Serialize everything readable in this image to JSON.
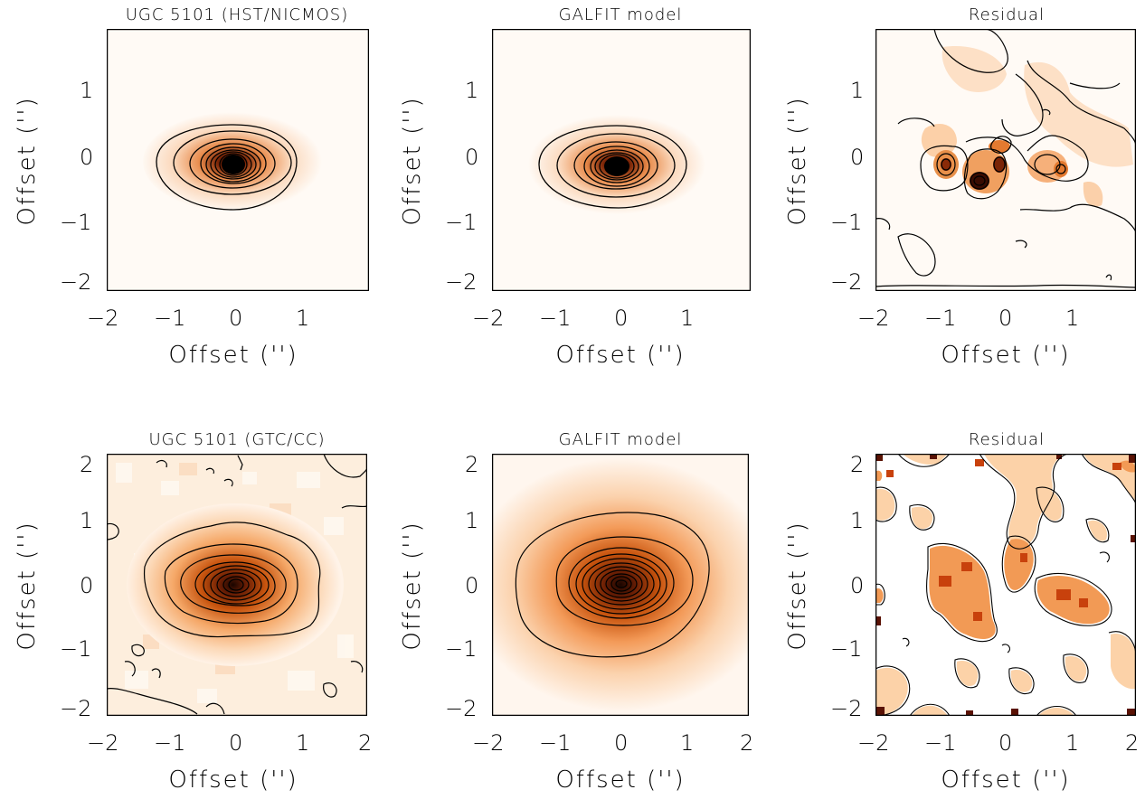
{
  "panels": [
    {
      "title": "UGC 5101 (HST/NICMOS)",
      "xlabel": "Offset ('')",
      "ylabel": "Offset ('')",
      "xticks": [
        "−2",
        "−1",
        "0",
        "1"
      ],
      "yticks": [
        "1",
        "0",
        "−1",
        "−2"
      ]
    },
    {
      "title": "GALFIT model",
      "xlabel": "Offset ('')",
      "ylabel": "Offset ('')",
      "xticks": [
        "−2",
        "−1",
        "0",
        "1"
      ],
      "yticks": [
        "1",
        "0",
        "−1",
        "−2"
      ]
    },
    {
      "title": "Residual",
      "xlabel": "Offset ('')",
      "ylabel": "Offset ('')",
      "xticks": [
        "−2",
        "−1",
        "0",
        "1"
      ],
      "yticks": [
        "1",
        "0",
        "−1",
        "−2"
      ]
    },
    {
      "title": "UGC 5101 (GTC/CC)",
      "xlabel": "Offset ('')",
      "ylabel": "Offset ('')",
      "xticks": [
        "−2",
        "−1",
        "0",
        "1",
        "2"
      ],
      "yticks": [
        "2",
        "1",
        "0",
        "−1",
        "−2"
      ]
    },
    {
      "title": "GALFIT model",
      "xlabel": "Offset ('')",
      "ylabel": "Offset ('')",
      "xticks": [
        "−2",
        "−1",
        "0",
        "1",
        "2"
      ],
      "yticks": [
        "2",
        "1",
        "0",
        "−1",
        "−2"
      ]
    },
    {
      "title": "Residual",
      "xlabel": "Offset ('')",
      "ylabel": "Offset ('')",
      "xticks": [
        "−2",
        "−1",
        "0",
        "1",
        "2"
      ],
      "yticks": [
        "2",
        "1",
        "0",
        "−1",
        "−2"
      ]
    }
  ],
  "colors": {
    "heat_dark": "#1a0500",
    "heat_mid": "#c84a10",
    "heat_light": "#fde8d4",
    "background": "#fffaf5"
  }
}
